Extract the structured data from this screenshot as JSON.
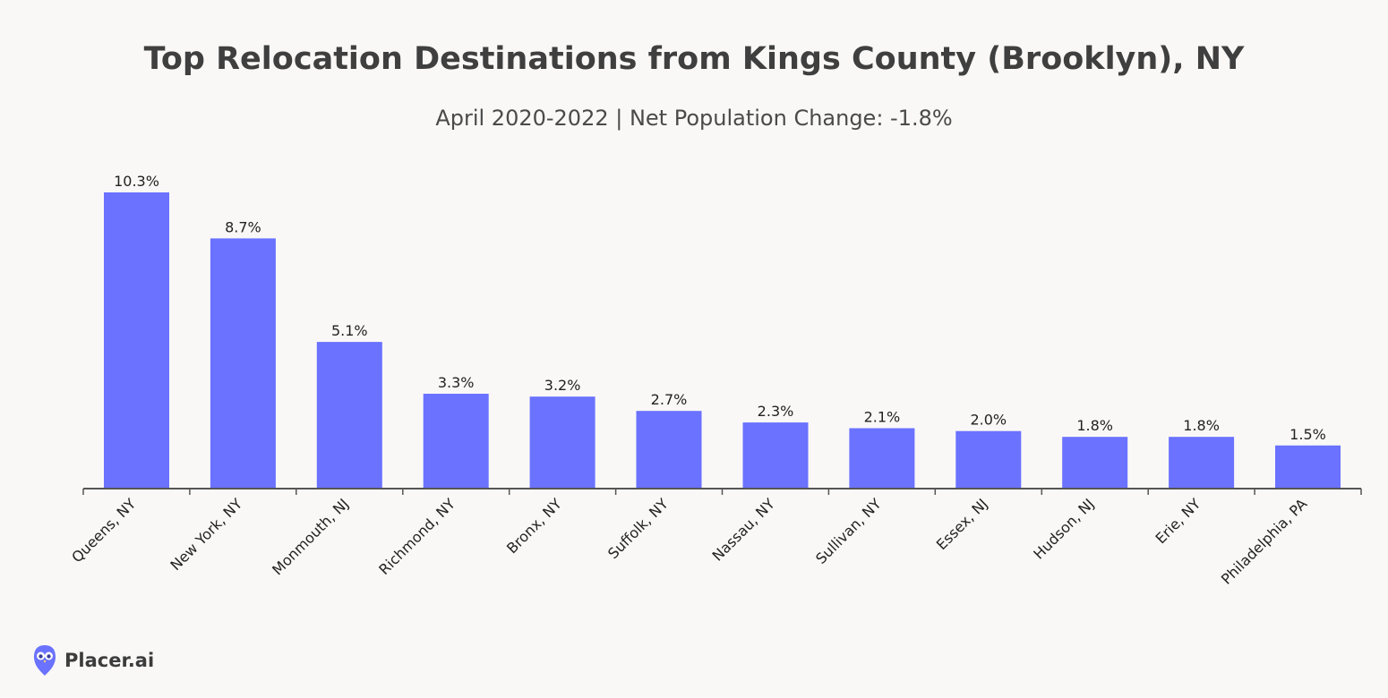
{
  "brand": {
    "name": "Placer.ai",
    "logo_icon": "owl-logo-icon",
    "logo_color": "#6a72ff"
  },
  "colors": {
    "bar": "#6a72ff",
    "axis": "#555555",
    "text": "#222222",
    "background": "#f9f8f7"
  },
  "chart_data": {
    "type": "bar",
    "title": "Top Relocation Destinations from Kings County (Brooklyn), NY",
    "subtitle": "April 2020-2022 | Net Population Change: -1.8%",
    "xlabel": "",
    "ylabel": "",
    "grid": false,
    "legend": "none",
    "ylim": [
      0,
      10.3
    ],
    "categories": [
      "Queens, NY",
      "New York, NY",
      "Monmouth, NJ",
      "Richmond, NY",
      "Bronx, NY",
      "Suffolk, NY",
      "Nassau, NY",
      "Sullivan, NY",
      "Essex, NJ",
      "Hudson, NJ",
      "Erie, NY",
      "Philadelphia, PA"
    ],
    "values": [
      10.3,
      8.7,
      5.1,
      3.3,
      3.2,
      2.7,
      2.3,
      2.1,
      2.0,
      1.8,
      1.8,
      1.5
    ],
    "data_labels": [
      "10.3%",
      "8.7%",
      "5.1%",
      "3.3%",
      "3.2%",
      "2.7%",
      "2.3%",
      "2.1%",
      "2.0%",
      "1.8%",
      "1.8%",
      "1.5%"
    ]
  }
}
